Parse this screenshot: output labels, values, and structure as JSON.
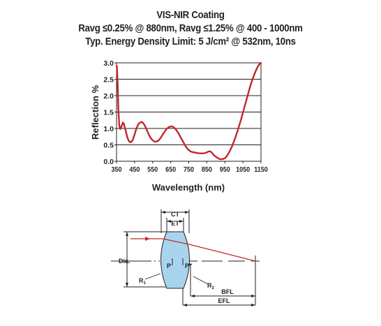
{
  "title": {
    "line1": "VIS-NIR Coating",
    "line2": "Ravg ≤0.25% @ 880nm, Ravg ≤1.25% @ 400 - 1000nm",
    "line3": "Typ. Energy Density Limit: 5 J/cm² @ 532nm, 10ns"
  },
  "chart_data": {
    "type": "line",
    "xlabel": "Wavelength (nm)",
    "ylabel": "Reflection %",
    "xlim": [
      350,
      1150
    ],
    "ylim": [
      0,
      3.0
    ],
    "xticks": [
      "350",
      "450",
      "550",
      "650",
      "750",
      "850",
      "950",
      "1050",
      "1150"
    ],
    "yticks": [
      "0.0",
      "0.5",
      "1.0",
      "1.5",
      "2.0",
      "2.5",
      "3.0"
    ],
    "grid": "horizontal",
    "series_color": "#c1272d",
    "x": [
      350,
      352,
      356,
      360,
      365,
      370,
      375,
      380,
      385,
      390,
      395,
      400,
      410,
      420,
      430,
      440,
      450,
      460,
      470,
      480,
      490,
      500,
      510,
      520,
      530,
      540,
      550,
      560,
      570,
      580,
      590,
      600,
      610,
      620,
      630,
      640,
      650,
      660,
      670,
      680,
      690,
      700,
      710,
      720,
      730,
      740,
      750,
      760,
      770,
      780,
      790,
      800,
      810,
      820,
      830,
      840,
      850,
      860,
      870,
      880,
      890,
      900,
      910,
      920,
      930,
      940,
      950,
      960,
      970,
      980,
      990,
      1000,
      1010,
      1020,
      1030,
      1040,
      1050,
      1060,
      1070,
      1080,
      1090,
      1100,
      1110,
      1120,
      1130,
      1140,
      1150
    ],
    "y": [
      2.9,
      2.9,
      2.4,
      1.6,
      1.1,
      0.98,
      1.02,
      1.1,
      1.18,
      1.15,
      1.05,
      0.95,
      0.72,
      0.6,
      0.58,
      0.65,
      0.82,
      1.0,
      1.12,
      1.18,
      1.2,
      1.15,
      1.05,
      0.92,
      0.8,
      0.7,
      0.64,
      0.6,
      0.6,
      0.62,
      0.68,
      0.76,
      0.85,
      0.93,
      1.0,
      1.04,
      1.06,
      1.06,
      1.02,
      0.96,
      0.88,
      0.78,
      0.68,
      0.58,
      0.48,
      0.4,
      0.34,
      0.3,
      0.28,
      0.27,
      0.26,
      0.25,
      0.24,
      0.24,
      0.24,
      0.25,
      0.27,
      0.3,
      0.3,
      0.25,
      0.18,
      0.14,
      0.1,
      0.07,
      0.06,
      0.07,
      0.09,
      0.15,
      0.24,
      0.34,
      0.46,
      0.6,
      0.75,
      0.92,
      1.1,
      1.28,
      1.48,
      1.68,
      1.88,
      2.08,
      2.28,
      2.45,
      2.6,
      2.74,
      2.86,
      2.95,
      3.0
    ]
  },
  "diagram": {
    "labels": {
      "ct": "CT",
      "et": "ET",
      "dia": "Dia.",
      "p": "P",
      "p_double_prime": "P\"",
      "r1": "R",
      "r1_sub": "1",
      "r2": "R",
      "r2_sub": "2",
      "bfl": "BFL",
      "efl": "EFL"
    },
    "colors": {
      "lens_fill": "#a8d4ee",
      "ray": "#c1272d",
      "outline": "#231f20"
    }
  }
}
